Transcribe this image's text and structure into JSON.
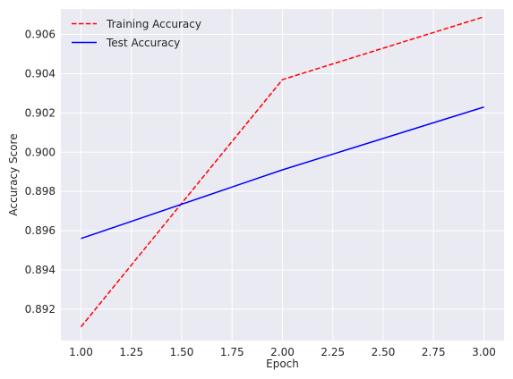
{
  "chart_data": {
    "type": "line",
    "title": "",
    "xlabel": "Epoch",
    "ylabel": "Accuracy Score",
    "x": [
      1,
      2,
      3
    ],
    "xlim": [
      0.9,
      3.1
    ],
    "ylim": [
      0.8904,
      0.9073
    ],
    "xticks": [
      1.0,
      1.25,
      1.5,
      1.75,
      2.0,
      2.25,
      2.5,
      2.75,
      3.0
    ],
    "xtick_labels": [
      "1.00",
      "1.25",
      "1.50",
      "1.75",
      "2.00",
      "2.25",
      "2.50",
      "2.75",
      "3.00"
    ],
    "yticks": [
      0.892,
      0.894,
      0.896,
      0.898,
      0.9,
      0.902,
      0.904,
      0.906
    ],
    "ytick_labels": [
      "0.892",
      "0.894",
      "0.896",
      "0.898",
      "0.900",
      "0.902",
      "0.904",
      "0.906"
    ],
    "grid": true,
    "legend_position": "top-left",
    "background_color": "#eaeaf2",
    "series": [
      {
        "name": "Training Accuracy",
        "values": [
          0.8911,
          0.9037,
          0.9069
        ],
        "color": "#ff0000",
        "line_style": "dashed"
      },
      {
        "name": "Test Accuracy",
        "values": [
          0.8956,
          0.8991,
          0.9023
        ],
        "color": "#0000ff",
        "line_style": "solid"
      }
    ]
  }
}
